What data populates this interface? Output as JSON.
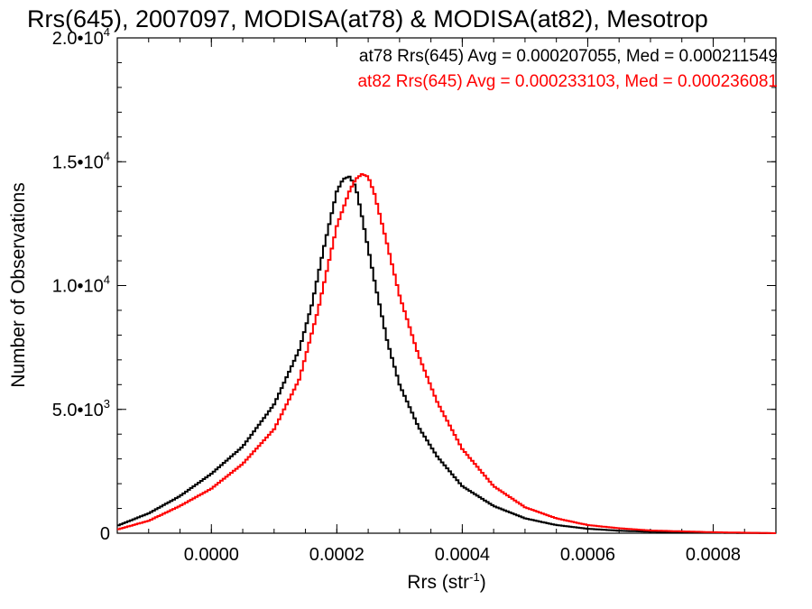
{
  "chart_data": {
    "type": "line",
    "title": "Rrs(645), 2007097, MODISA(at78) & MODISA(at82), Mesotrop",
    "xlabel": "Rrs (str",
    "xlabel_sup": "-1",
    "xlabel_close": ")",
    "ylabel": "Number of Observations",
    "xlim": [
      -0.00015,
      0.0009
    ],
    "ylim": [
      0,
      20000
    ],
    "x_ticks": [
      {
        "value": 0.0,
        "label": "0.0000"
      },
      {
        "value": 0.0002,
        "label": "0.0002"
      },
      {
        "value": 0.0004,
        "label": "0.0004"
      },
      {
        "value": 0.0006,
        "label": "0.0006"
      },
      {
        "value": 0.0008,
        "label": "0.0008"
      }
    ],
    "y_ticks": [
      {
        "value": 0,
        "base": "0",
        "exp": ""
      },
      {
        "value": 5000,
        "base": "5.0•10",
        "exp": "3"
      },
      {
        "value": 10000,
        "base": "1.0•10",
        "exp": "4"
      },
      {
        "value": 15000,
        "base": "1.5•10",
        "exp": "4"
      },
      {
        "value": 20000,
        "base": "2.0•10",
        "exp": "4"
      }
    ],
    "grid": false,
    "legend_position": "top-right",
    "series": [
      {
        "name": "at78",
        "color": "#000000",
        "legend_text": "at78 Rrs(645) Avg = 0.000207055, Med = 0.000211549",
        "x": [
          -0.00015,
          -0.0001,
          -5e-05,
          0.0,
          5e-05,
          0.0001,
          0.00014,
          0.00016,
          0.00018,
          0.0002,
          0.00021,
          0.00022,
          0.00023,
          0.00024,
          0.00026,
          0.00028,
          0.0003,
          0.00033,
          0.00036,
          0.0004,
          0.00045,
          0.0005,
          0.00055,
          0.0006,
          0.00065,
          0.0007,
          0.0008,
          0.0009
        ],
        "y": [
          300,
          800,
          1500,
          2400,
          3500,
          5200,
          7400,
          9200,
          11600,
          13800,
          14300,
          14400,
          14000,
          12800,
          10200,
          7800,
          6000,
          4300,
          3100,
          1900,
          1100,
          600,
          330,
          180,
          100,
          60,
          20,
          0
        ]
      },
      {
        "name": "at82",
        "color": "#ff0000",
        "legend_text": "at82 Rrs(645) Avg = 0.000233103, Med = 0.000236081",
        "x": [
          -0.00015,
          -0.0001,
          -5e-05,
          0.0,
          5e-05,
          0.0001,
          0.00014,
          0.00017,
          0.0002,
          0.00022,
          0.00023,
          0.00024,
          0.00025,
          0.00026,
          0.00028,
          0.0003,
          0.00033,
          0.00036,
          0.0004,
          0.00045,
          0.0005,
          0.00055,
          0.0006,
          0.00065,
          0.0007,
          0.0008,
          0.0009
        ],
        "y": [
          150,
          500,
          1100,
          1800,
          2800,
          4200,
          6200,
          9000,
          12400,
          13800,
          14300,
          14500,
          14400,
          13700,
          11700,
          9600,
          7200,
          5300,
          3400,
          1900,
          1050,
          600,
          330,
          200,
          110,
          40,
          0
        ]
      }
    ]
  }
}
